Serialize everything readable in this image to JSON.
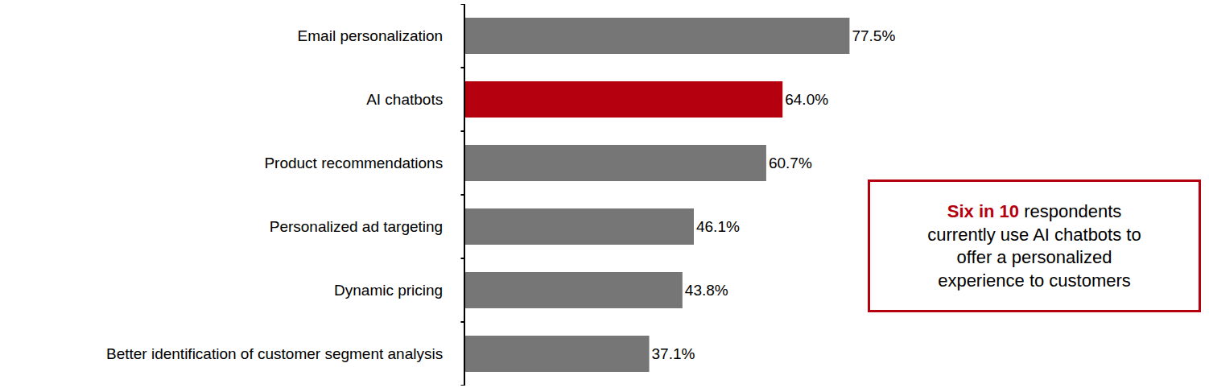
{
  "chart_data": {
    "type": "bar",
    "orientation": "horizontal",
    "categories": [
      "Email personalization",
      "AI chatbots",
      "Product recommendations",
      "Personalized ad targeting",
      "Dynamic pricing",
      "Better identification of customer segment analysis"
    ],
    "values": [
      77.5,
      64.0,
      60.7,
      46.1,
      43.8,
      37.1
    ],
    "value_labels": [
      "77.5%",
      "64.0%",
      "60.7%",
      "46.1%",
      "43.8%",
      "37.1%"
    ],
    "colors": [
      "#767676",
      "#b5000f",
      "#767676",
      "#767676",
      "#767676",
      "#767676"
    ],
    "data_labels": true,
    "xlim": [
      0,
      150
    ],
    "tick_labels": "y",
    "grid": false,
    "annotation": {
      "highlight": "Six in 10",
      "text": "respondents currently use AI chatbots to offer a personalized experience to customers",
      "color": "#b5000f"
    }
  }
}
